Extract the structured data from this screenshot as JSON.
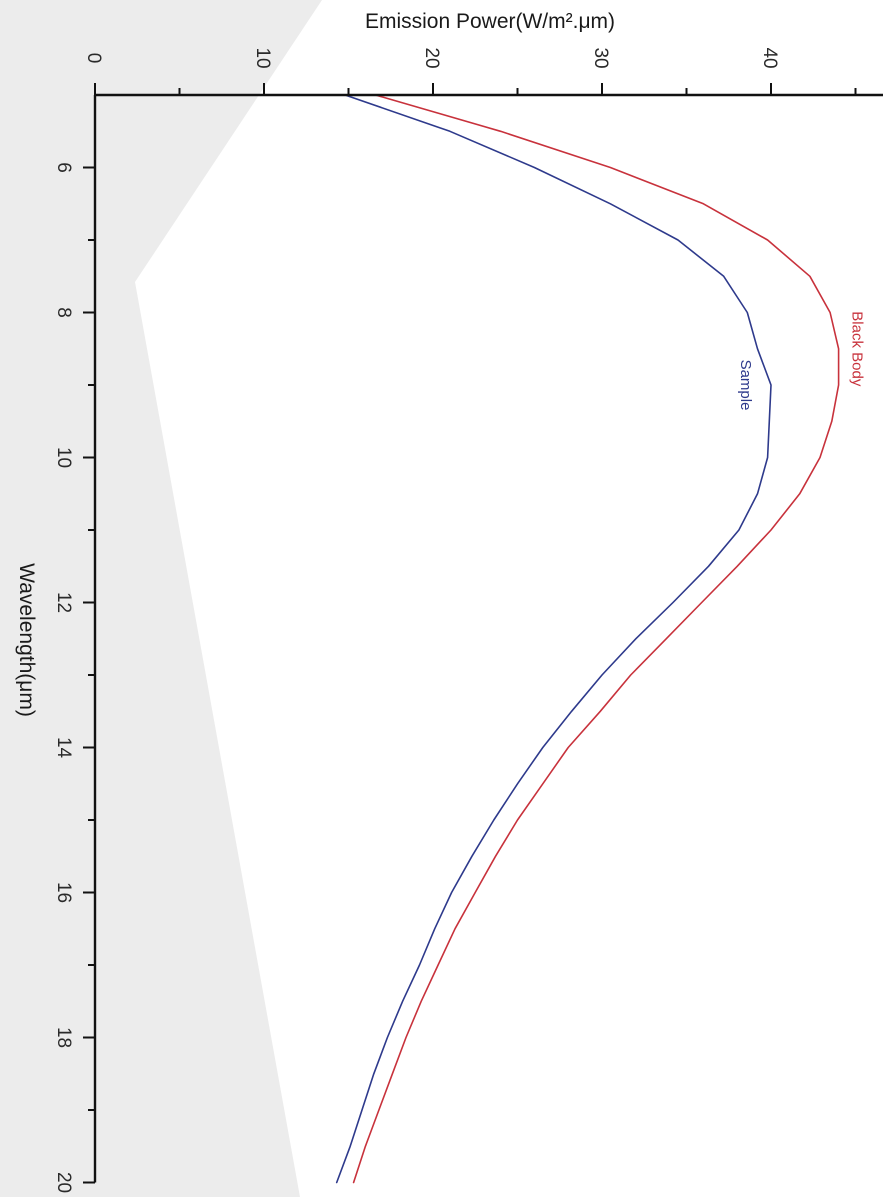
{
  "chart_data": {
    "type": "line",
    "xlabel": "Wavelength(μm)",
    "ylabel": "Emission Power(W/m².μm)",
    "xlim": [
      5,
      20
    ],
    "ylim": [
      0,
      46
    ],
    "x_major_ticks": [
      6,
      8,
      10,
      12,
      14,
      16,
      18,
      20
    ],
    "y_major_ticks": [
      0,
      10,
      20,
      30,
      40
    ],
    "x_tick_labels": [
      "6",
      "8",
      "10",
      "12",
      "14",
      "16",
      "18",
      "20"
    ],
    "y_tick_labels": [
      "0",
      "10",
      "20",
      "30",
      "40"
    ],
    "grid": false,
    "orientation": "rotated 90° clockwise: wavelength increases downward, emission power increases to the right",
    "series": [
      {
        "name": "Black Body",
        "color": "#c8323c",
        "x": [
          5.0,
          5.5,
          6.0,
          6.5,
          7.0,
          7.5,
          8.0,
          8.5,
          9.0,
          9.5,
          10.0,
          10.5,
          11.0,
          11.5,
          12.0,
          12.5,
          13.0,
          13.5,
          14.0,
          14.5,
          15.0,
          15.5,
          16.0,
          16.5,
          17.0,
          17.5,
          18.0,
          18.5,
          19.0,
          19.5,
          20.0
        ],
        "y": [
          16.6,
          24.0,
          30.5,
          36.0,
          39.8,
          42.3,
          43.5,
          44.0,
          44.0,
          43.6,
          42.9,
          41.7,
          40.0,
          38.0,
          35.9,
          33.8,
          31.7,
          29.9,
          28.0,
          26.5,
          25.0,
          23.7,
          22.5,
          21.3,
          20.3,
          19.3,
          18.4,
          17.6,
          16.8,
          16.0,
          15.3
        ]
      },
      {
        "name": "Sample",
        "color": "#2e3a8c",
        "x": [
          5.0,
          5.5,
          6.0,
          6.5,
          7.0,
          7.5,
          8.0,
          8.5,
          9.0,
          9.5,
          10.0,
          10.5,
          11.0,
          11.5,
          12.0,
          12.5,
          13.0,
          13.5,
          14.0,
          14.5,
          15.0,
          15.5,
          16.0,
          16.5,
          17.0,
          17.5,
          18.0,
          18.5,
          19.0,
          19.5,
          20.0
        ],
        "y": [
          14.8,
          21.0,
          26.0,
          30.5,
          34.5,
          37.2,
          38.6,
          39.2,
          40.0,
          39.9,
          39.8,
          39.2,
          38.1,
          36.3,
          34.2,
          32.0,
          30.0,
          28.2,
          26.5,
          25.0,
          23.6,
          22.3,
          21.1,
          20.1,
          19.2,
          18.2,
          17.3,
          16.5,
          15.8,
          15.1,
          14.3
        ]
      }
    ]
  }
}
